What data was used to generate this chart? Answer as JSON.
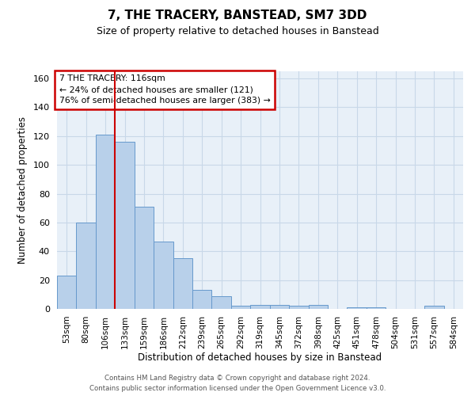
{
  "title": "7, THE TRACERY, BANSTEAD, SM7 3DD",
  "subtitle": "Size of property relative to detached houses in Banstead",
  "xlabel": "Distribution of detached houses by size in Banstead",
  "ylabel": "Number of detached properties",
  "bar_labels": [
    "53sqm",
    "80sqm",
    "106sqm",
    "133sqm",
    "159sqm",
    "186sqm",
    "212sqm",
    "239sqm",
    "265sqm",
    "292sqm",
    "319sqm",
    "345sqm",
    "372sqm",
    "398sqm",
    "425sqm",
    "451sqm",
    "478sqm",
    "504sqm",
    "531sqm",
    "557sqm",
    "584sqm"
  ],
  "bar_values": [
    23,
    60,
    121,
    116,
    71,
    47,
    35,
    13,
    9,
    2,
    3,
    3,
    2,
    3,
    0,
    1,
    1,
    0,
    0,
    2,
    0
  ],
  "bar_color": "#b8d0ea",
  "bar_edge_color": "#6699cc",
  "grid_color": "#c8d8e8",
  "background_color": "#e8f0f8",
  "red_line_index": 2.5,
  "annotation_text": "7 THE TRACERY: 116sqm\n← 24% of detached houses are smaller (121)\n76% of semi-detached houses are larger (383) →",
  "annotation_box_color": "#ffffff",
  "annotation_box_edge_color": "#cc0000",
  "ylim": [
    0,
    165
  ],
  "yticks": [
    0,
    20,
    40,
    60,
    80,
    100,
    120,
    140,
    160
  ],
  "footer_line1": "Contains HM Land Registry data © Crown copyright and database right 2024.",
  "footer_line2": "Contains public sector information licensed under the Open Government Licence v3.0."
}
